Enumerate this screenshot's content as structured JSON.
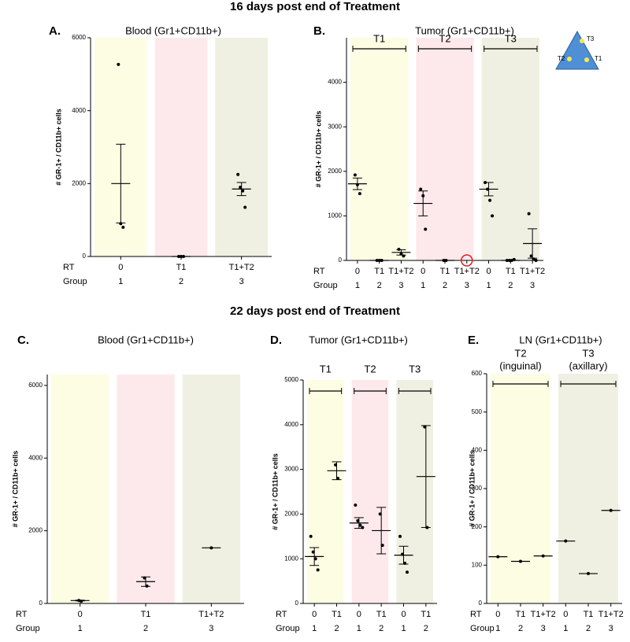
{
  "headings": [
    "16 days post end of Treatment",
    "22 days post end of Treatment"
  ],
  "chart_data": [
    {
      "type": "dotplot",
      "letter": "A.",
      "title": "Blood (Gr1+CD11b+)",
      "y_label": "# GR-1+ / CD11b+ cells",
      "ylim": [
        0,
        6000
      ],
      "yticks": [
        0,
        2000,
        4000,
        6000
      ],
      "row_labels": [
        "RT",
        "Group"
      ],
      "sections": [
        {
          "color": "#fdfde4",
          "groups": [
            {
              "rt": "0",
              "group": "1",
              "points": [
                5270,
                900,
                800
              ],
              "mean": 2000,
              "error": 1080
            }
          ]
        },
        {
          "color": "#fde9eb",
          "groups": [
            {
              "rt": "T1",
              "group": "2",
              "points": [
                0,
                0,
                0
              ],
              "mean": 0,
              "error": 0
            }
          ]
        },
        {
          "color": "#eff0e1",
          "groups": [
            {
              "rt": "T1+T2",
              "group": "3",
              "points": [
                2250,
                1900,
                1800,
                1350
              ],
              "mean": 1850,
              "error": 180
            }
          ]
        }
      ]
    },
    {
      "type": "dotplot",
      "letter": "B.",
      "title": "Tumor (Gr1+CD11b+)",
      "y_label": "# GR-1+ / CD11b+ cells",
      "ylim": [
        0,
        5000
      ],
      "yticks": [
        0,
        1000,
        2000,
        3000,
        4000
      ],
      "row_labels": [
        "RT",
        "Group"
      ],
      "inset_labels": [
        "T3",
        "T2",
        "T1"
      ],
      "sections": [
        {
          "label": "T1",
          "color": "#fdfde4",
          "groups": [
            {
              "rt": "0",
              "group": "1",
              "points": [
                1920,
                1700,
                1500
              ],
              "mean": 1720,
              "error": 130
            },
            {
              "rt": "T1",
              "group": "2",
              "points": [
                0,
                0,
                0
              ],
              "mean": 0,
              "error": 0
            },
            {
              "rt": "T1+T2",
              "group": "3",
              "points": [
                250,
                150,
                100
              ],
              "mean": 180,
              "error": 60
            }
          ]
        },
        {
          "label": "T2",
          "color": "#fde9eb",
          "groups": [
            {
              "rt": "0",
              "group": "1",
              "points": [
                1600,
                1450,
                700
              ],
              "mean": 1280,
              "error": 280
            },
            {
              "rt": "T1",
              "group": "2",
              "points": [
                0,
                0
              ],
              "mean": 0,
              "error": 0
            },
            {
              "rt": "T1+T2",
              "group": "3",
              "points": [],
              "mean": null,
              "error": null
            }
          ]
        },
        {
          "label": "T3",
          "color": "#eff0e1",
          "groups": [
            {
              "rt": "0",
              "group": "1",
              "points": [
                1750,
                1600,
                1350,
                1000
              ],
              "mean": 1600,
              "error": 150
            },
            {
              "rt": "T1",
              "group": "2",
              "points": [
                0,
                0,
                0,
                20
              ],
              "mean": 0,
              "error": 0
            },
            {
              "rt": "T1+T2",
              "group": "3",
              "points": [
                1050,
                100,
                30,
                0
              ],
              "mean": 380,
              "error": 330
            }
          ]
        }
      ]
    },
    {
      "type": "dotplot",
      "letter": "C.",
      "title": "Blood (Gr1+CD11b+)",
      "y_label": "# GR-1+ / CD11b+ cells",
      "ylim": [
        0,
        6300
      ],
      "yticks": [
        0,
        2000,
        4000,
        6000
      ],
      "row_labels": [
        "RT",
        "Group"
      ],
      "sections": [
        {
          "color": "#fdfde4",
          "groups": [
            {
              "rt": "0",
              "group": "1",
              "points": [
                80,
                60
              ],
              "mean": 80,
              "error": 10
            }
          ]
        },
        {
          "color": "#fde9eb",
          "groups": [
            {
              "rt": "T1",
              "group": "2",
              "points": [
                700,
                480
              ],
              "mean": 600,
              "error": 130
            }
          ]
        },
        {
          "color": "#eff0e1",
          "groups": [
            {
              "rt": "T1+T2",
              "group": "3",
              "points": [
                1530
              ],
              "mean": 1530,
              "error": 0
            }
          ]
        }
      ]
    },
    {
      "type": "dotplot",
      "letter": "D.",
      "title": "Tumor (Gr1+CD11b+)",
      "y_label": "# GR-1+ / CD11b+ cells",
      "ylim": [
        0,
        5000
      ],
      "yticks": [
        0,
        1000,
        2000,
        3000,
        4000,
        5000
      ],
      "row_labels": [
        "RT",
        "Group"
      ],
      "sections": [
        {
          "label": "T1",
          "color": "#fdfde4",
          "groups": [
            {
              "rt": "0",
              "group": "1",
              "points": [
                1500,
                1150,
                1000,
                750
              ],
              "mean": 1050,
              "error": 200
            },
            {
              "rt": "T1",
              "group": "2",
              "points": [
                3100,
                2800
              ],
              "mean": 2970,
              "error": 200
            }
          ]
        },
        {
          "label": "T2",
          "color": "#fde9eb",
          "groups": [
            {
              "rt": "0",
              "group": "1",
              "points": [
                2200,
                1850,
                1750,
                1700
              ],
              "mean": 1800,
              "error": 120
            },
            {
              "rt": "T1",
              "group": "2",
              "points": [
                2000,
                1300
              ],
              "mean": 1630,
              "error": 520
            }
          ]
        },
        {
          "label": "T3",
          "color": "#eff0e1",
          "groups": [
            {
              "rt": "0",
              "group": "1",
              "points": [
                1500,
                1100,
                900,
                700
              ],
              "mean": 1080,
              "error": 200
            },
            {
              "rt": "T1",
              "group": "2",
              "points": [
                3950,
                1700
              ],
              "mean": 2840,
              "error": 1140
            }
          ]
        }
      ]
    },
    {
      "type": "dotplot",
      "letter": "E.",
      "title": "LN (Gr1+CD11b+)",
      "y_label": "# GR-1+ / CD11b+ cells",
      "ylim": [
        0,
        600
      ],
      "yticks": [
        0,
        100,
        200,
        300,
        400,
        500,
        600
      ],
      "row_labels": [
        "RT",
        "Group"
      ],
      "sections": [
        {
          "label": "T2",
          "sublabel": "(inguinal)",
          "color": "#fdfde4",
          "groups": [
            {
              "rt": "0",
              "group": "1",
              "points": [
                122
              ],
              "mean": 122,
              "error": 0
            },
            {
              "rt": "T1",
              "group": "2",
              "points": [
                110
              ],
              "mean": 110,
              "error": 0
            },
            {
              "rt": "T1+T2",
              "group": "3",
              "points": [
                124
              ],
              "mean": 124,
              "error": 0
            }
          ]
        },
        {
          "label": "T3",
          "sublabel": "(axillary)",
          "color": "#eff0e1",
          "groups": [
            {
              "rt": "0",
              "group": "1",
              "points": [
                163
              ],
              "mean": 163,
              "error": 0
            },
            {
              "rt": "T1",
              "group": "2",
              "points": [
                78
              ],
              "mean": 78,
              "error": 0
            },
            {
              "rt": "T1+T2",
              "group": "3",
              "points": [
                243
              ],
              "mean": 243,
              "error": 0
            }
          ]
        }
      ]
    }
  ]
}
